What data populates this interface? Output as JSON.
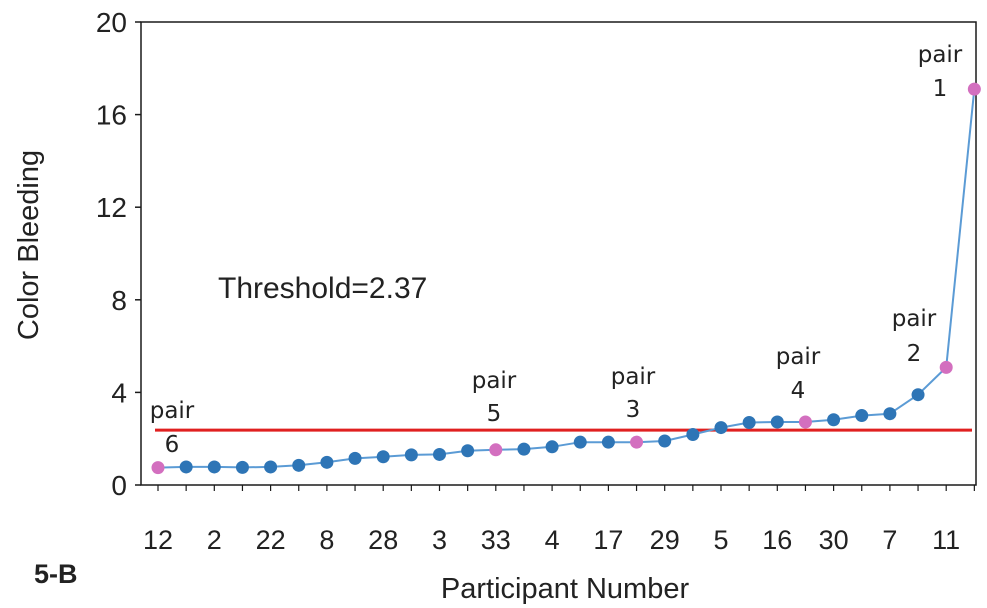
{
  "chart_data": {
    "type": "line",
    "title": "",
    "xlabel": "Participant Number",
    "ylabel": "Color Bleeding",
    "ylim": [
      0,
      20
    ],
    "yticks": [
      0,
      4,
      8,
      12,
      16,
      20
    ],
    "grid": false,
    "panel_label": "5-B",
    "x_tick_labels": [
      "12",
      "2",
      "22",
      "8",
      "28",
      "3",
      "33",
      "4",
      "17",
      "29",
      "5",
      "16",
      "30",
      "7",
      "11"
    ],
    "series": [
      {
        "values": [
          0.75,
          0.78,
          0.78,
          0.76,
          0.78,
          0.85,
          0.98,
          1.15,
          1.22,
          1.3,
          1.32,
          1.48,
          1.52,
          1.55,
          1.65,
          1.85,
          1.85,
          1.85,
          1.9,
          2.18,
          2.48,
          2.7,
          2.72,
          2.72,
          2.82,
          3.0,
          3.08,
          3.9,
          5.08,
          17.1
        ],
        "line_color": "#5b9bd5",
        "marker_color": "#2e75b6",
        "highlight_color": "#d36fbf",
        "highlight_indices": [
          0,
          12,
          17,
          23,
          28,
          29
        ]
      }
    ],
    "threshold": {
      "value": 2.37,
      "label": "Threshold=2.37",
      "color": "#e02020"
    },
    "annotations": [
      {
        "index": 0,
        "line1": "pair",
        "line2": "6"
      },
      {
        "index": 12,
        "line1": "pair",
        "line2": "5"
      },
      {
        "index": 17,
        "line1": "pair",
        "line2": "3"
      },
      {
        "index": 23,
        "line1": "pair",
        "line2": "4"
      },
      {
        "index": 28,
        "line1": "pair",
        "line2": "2"
      },
      {
        "index": 29,
        "line1": "pair",
        "line2": "1"
      }
    ]
  }
}
